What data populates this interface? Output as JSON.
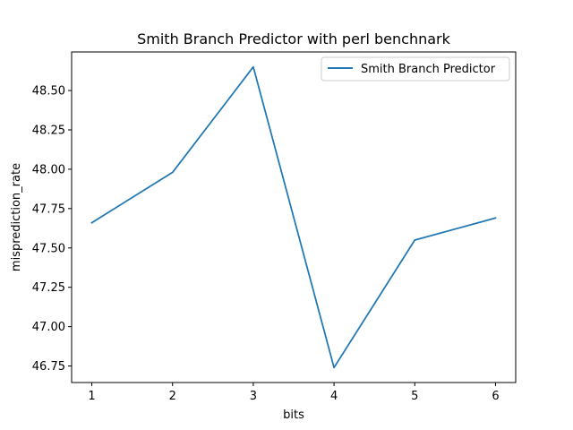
{
  "chart_data": {
    "type": "line",
    "title": "Smith Branch Predictor with perl benchnark",
    "xlabel": "bits",
    "ylabel": "misprediction_rate",
    "x": [
      1,
      2,
      3,
      4,
      5,
      6
    ],
    "series": [
      {
        "name": "Smith Branch Predictor",
        "values": [
          47.66,
          47.98,
          48.65,
          46.74,
          47.55,
          47.69
        ],
        "color": "#1f77b4"
      }
    ],
    "xticks": [
      "1",
      "2",
      "3",
      "4",
      "5",
      "6"
    ],
    "yticks": [
      "46.75",
      "47.00",
      "47.25",
      "47.50",
      "47.75",
      "48.00",
      "48.25",
      "48.50"
    ],
    "xlim": [
      0.75,
      6.25
    ],
    "ylim": [
      46.645,
      48.745
    ],
    "grid": false,
    "legend": "top-right"
  }
}
